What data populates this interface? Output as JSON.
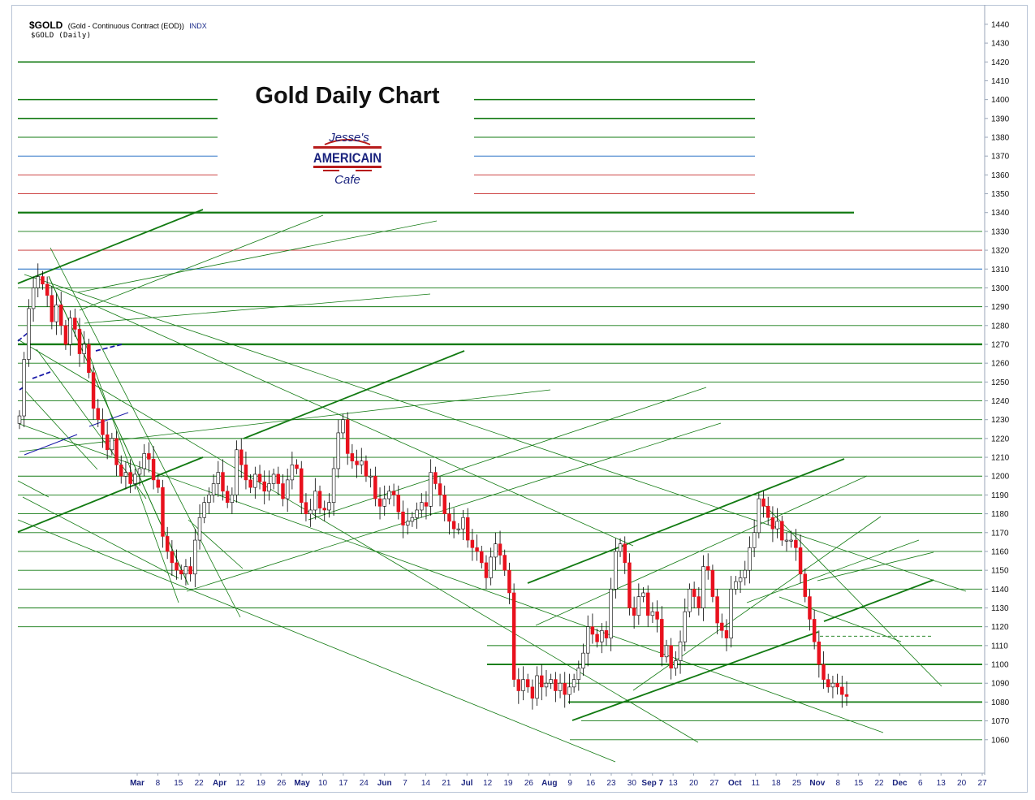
{
  "header": {
    "symbol": "$GOLD",
    "description": "(Gold - Continuous Contract (EOD))",
    "exchange": "INDX",
    "subtitle": "$GOLD (Daily)"
  },
  "chart_title": "Gold Daily Chart",
  "logo": {
    "line1": "Jesse's",
    "line2": "AMERICAIN",
    "line3": "Cafe"
  },
  "colors": {
    "up": "#ffffff",
    "down": "#e8111d",
    "wick": "#000000",
    "trend": "#127a12",
    "red_line": "#c62828",
    "blue_line": "#1565c0",
    "channel_blue": "#1a1aa8"
  },
  "chart_data": {
    "type": "candlestick",
    "ylim": [
      1053,
      1446
    ],
    "y_ticks": [
      1060,
      1070,
      1080,
      1090,
      1100,
      1110,
      1120,
      1130,
      1140,
      1150,
      1160,
      1170,
      1180,
      1190,
      1200,
      1210,
      1220,
      1230,
      1240,
      1250,
      1260,
      1270,
      1280,
      1290,
      1300,
      1310,
      1320,
      1330,
      1340,
      1350,
      1360,
      1370,
      1380,
      1390,
      1400,
      1410,
      1420,
      1430,
      1440
    ],
    "x_ticks": [
      {
        "label": "Mar",
        "bold": true
      },
      {
        "label": "8"
      },
      {
        "label": "15"
      },
      {
        "label": "22"
      },
      {
        "label": "Apr",
        "bold": true
      },
      {
        "label": "12"
      },
      {
        "label": "19"
      },
      {
        "label": "26"
      },
      {
        "label": "May",
        "bold": true
      },
      {
        "label": "10"
      },
      {
        "label": "17"
      },
      {
        "label": "24"
      },
      {
        "label": "Jun",
        "bold": true
      },
      {
        "label": "7"
      },
      {
        "label": "14"
      },
      {
        "label": "21"
      },
      {
        "label": "Jul",
        "bold": true
      },
      {
        "label": "12"
      },
      {
        "label": "19"
      },
      {
        "label": "26"
      },
      {
        "label": "Aug",
        "bold": true
      },
      {
        "label": "9"
      },
      {
        "label": "16"
      },
      {
        "label": "23"
      },
      {
        "label": "30"
      },
      {
        "label": "Sep 7",
        "bold": true
      },
      {
        "label": "13"
      },
      {
        "label": "20"
      },
      {
        "label": "27"
      },
      {
        "label": "Oct",
        "bold": true
      },
      {
        "label": "11"
      },
      {
        "label": "18"
      },
      {
        "label": "25"
      },
      {
        "label": "Nov",
        "bold": true
      },
      {
        "label": "8"
      },
      {
        "label": "15"
      },
      {
        "label": "22"
      },
      {
        "label": "Dec",
        "bold": true
      },
      {
        "label": "6"
      },
      {
        "label": "13"
      },
      {
        "label": "20"
      },
      {
        "label": "27"
      }
    ],
    "closes": [
      1232,
      1262,
      1289,
      1300,
      1306,
      1302,
      1296,
      1282,
      1291,
      1280,
      1270,
      1284,
      1278,
      1265,
      1270,
      1255,
      1236,
      1230,
      1222,
      1214,
      1220,
      1206,
      1200,
      1202,
      1196,
      1201,
      1204,
      1212,
      1209,
      1198,
      1194,
      1168,
      1160,
      1154,
      1150,
      1148,
      1152,
      1148,
      1166,
      1178,
      1186,
      1190,
      1196,
      1202,
      1192,
      1186,
      1190,
      1214,
      1206,
      1198,
      1194,
      1201,
      1197,
      1192,
      1196,
      1201,
      1196,
      1188,
      1198,
      1206,
      1204,
      1186,
      1180,
      1182,
      1192,
      1183,
      1182,
      1186,
      1204,
      1223,
      1230,
      1212,
      1208,
      1206,
      1208,
      1200,
      1200,
      1188,
      1184,
      1188,
      1192,
      1190,
      1181,
      1174,
      1176,
      1178,
      1182,
      1186,
      1184,
      1202,
      1196,
      1190,
      1180,
      1176,
      1172,
      1172,
      1178,
      1166,
      1162,
      1160,
      1154,
      1146,
      1157,
      1164,
      1158,
      1150,
      1138,
      1092,
      1086,
      1092,
      1088,
      1082,
      1094,
      1088,
      1090,
      1092,
      1086,
      1090,
      1084,
      1088,
      1092,
      1098,
      1106,
      1120,
      1116,
      1112,
      1118,
      1114,
      1140,
      1160,
      1164,
      1154,
      1130,
      1126,
      1136,
      1138,
      1126,
      1128,
      1124,
      1104,
      1110,
      1098,
      1102,
      1112,
      1128,
      1140,
      1136,
      1130,
      1152,
      1150,
      1136,
      1122,
      1118,
      1114,
      1140,
      1144,
      1146,
      1150,
      1162,
      1170,
      1188,
      1184,
      1178,
      1172,
      1176,
      1166,
      1166,
      1166,
      1162,
      1148,
      1136,
      1124,
      1112,
      1100,
      1092,
      1088,
      1090,
      1088,
      1084,
      1083
    ],
    "closes_note": "approximate daily closing prices read off the candles, Feb through early Nov"
  }
}
